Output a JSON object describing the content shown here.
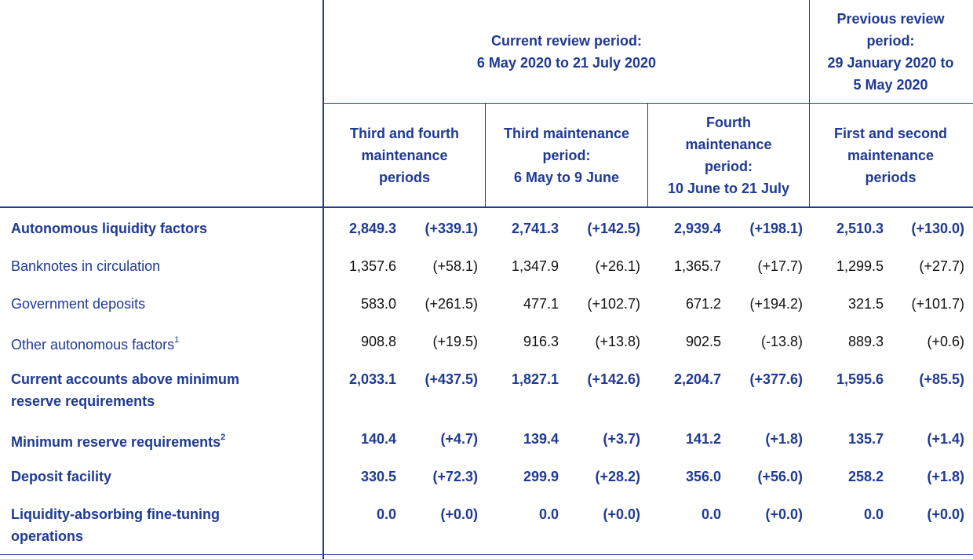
{
  "header": {
    "current_review": "Current review period:\n6 May 2020 to 21 July 2020",
    "previous_review": "Previous review\nperiod:\n29 January 2020 to\n5 May 2020",
    "col_third_fourth": "Third and fourth\nmaintenance\nperiods",
    "col_third": "Third maintenance\nperiod:\n6 May to 9 June",
    "col_fourth": "Fourth\nmaintenance\nperiod:\n10 June to 21 July",
    "col_first_second": "First and second\nmaintenance\nperiods"
  },
  "rows": [
    {
      "label": "Autonomous liquidity factors",
      "footnote": "",
      "bold": true,
      "values": [
        "2,849.3",
        "(+339.1)",
        "2,741.3",
        "(+142.5)",
        "2,939.4",
        "(+198.1)",
        "2,510.3",
        "(+130.0)"
      ]
    },
    {
      "label": "Banknotes in circulation",
      "footnote": "",
      "bold": false,
      "values": [
        "1,357.6",
        "(+58.1)",
        "1,347.9",
        "(+26.1)",
        "1,365.7",
        "(+17.7)",
        "1,299.5",
        "(+27.7)"
      ]
    },
    {
      "label": "Government deposits",
      "footnote": "",
      "bold": false,
      "values": [
        "583.0",
        "(+261.5)",
        "477.1",
        "(+102.7)",
        "671.2",
        "(+194.2)",
        "321.5",
        "(+101.7)"
      ]
    },
    {
      "label": "Other autonomous factors",
      "footnote": "1",
      "bold": false,
      "values": [
        "908.8",
        "(+19.5)",
        "916.3",
        "(+13.8)",
        "902.5",
        "(-13.8)",
        "889.3",
        "(+0.6)"
      ]
    },
    {
      "label": "Current accounts above minimum\nreserve requirements",
      "footnote": "",
      "bold": true,
      "values": [
        "2,033.1",
        "(+437.5)",
        "1,827.1",
        "(+142.6)",
        "2,204.7",
        "(+377.6)",
        "1,595.6",
        "(+85.5)"
      ]
    },
    {
      "label": "Minimum reserve requirements",
      "footnote": "2",
      "bold": true,
      "values": [
        "140.4",
        "(+4.7)",
        "139.4",
        "(+3.7)",
        "141.2",
        "(+1.8)",
        "135.7",
        "(+1.4)"
      ]
    },
    {
      "label": "Deposit facility",
      "footnote": "",
      "bold": true,
      "values": [
        "330.5",
        "(+72.3)",
        "299.9",
        "(+28.2)",
        "356.0",
        "(+56.0)",
        "258.2",
        "(+1.8)"
      ]
    },
    {
      "label": "Liquidity-absorbing fine-tuning\noperations",
      "footnote": "",
      "bold": true,
      "values": [
        "0.0",
        "(+0.0)",
        "0.0",
        "(+0.0)",
        "0.0",
        "(+0.0)",
        "0.0",
        "(+0.0)"
      ]
    }
  ],
  "colors": {
    "accent": "#1f3a93",
    "text": "#111111"
  }
}
